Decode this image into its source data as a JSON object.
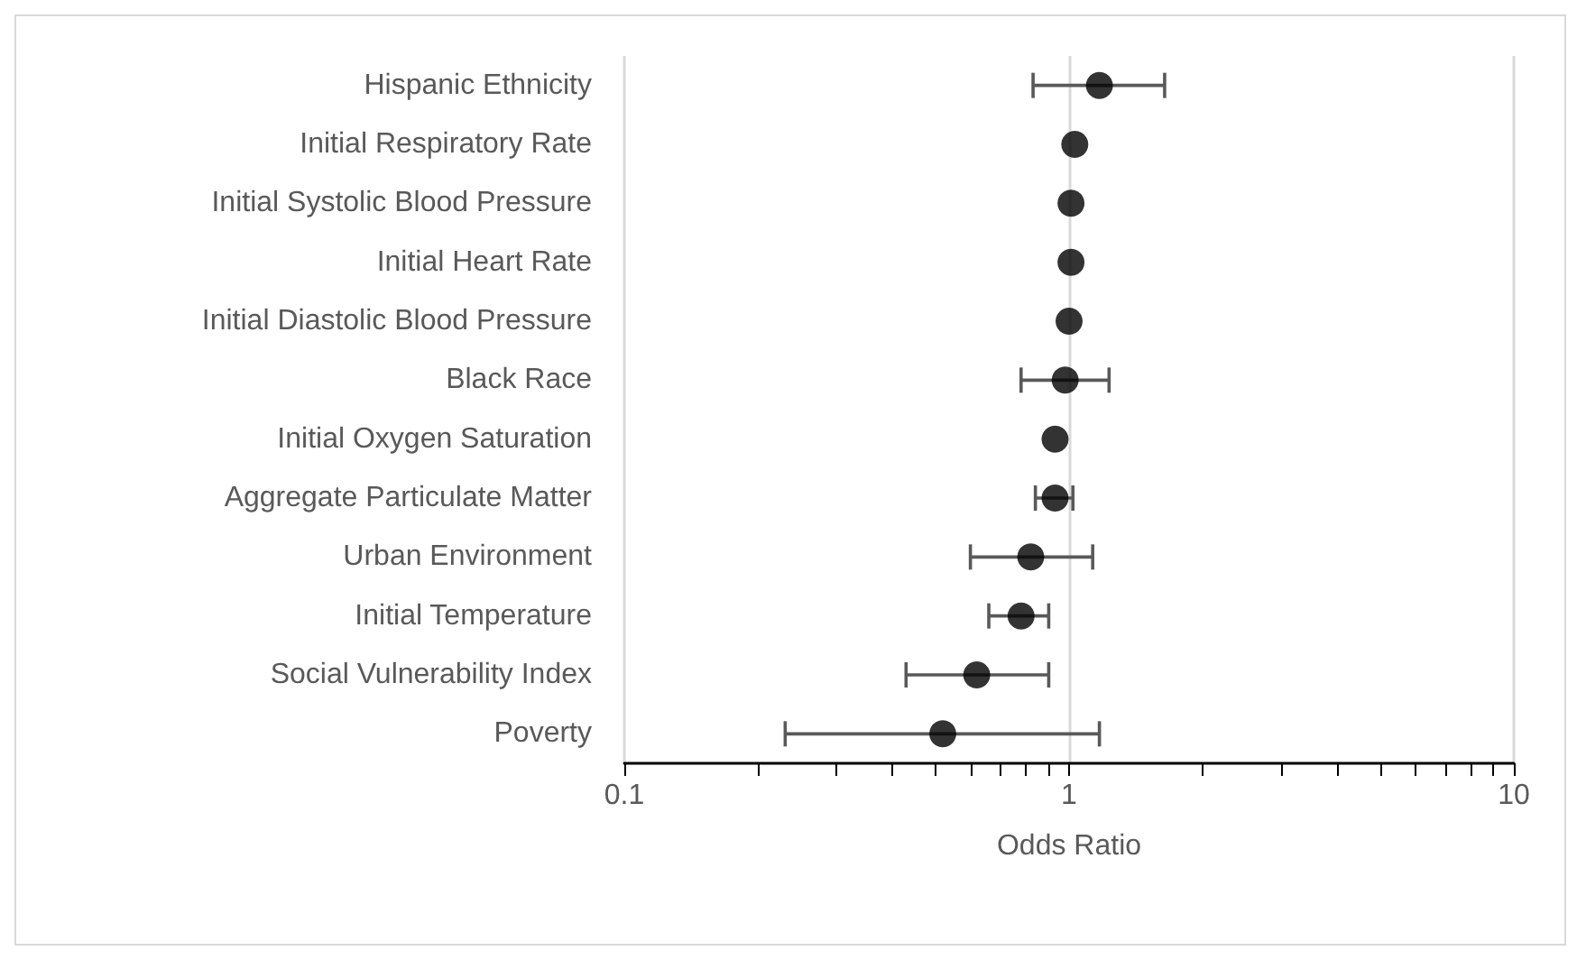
{
  "chart_data": {
    "type": "scatter",
    "xlabel": "Odds Ratio",
    "orientation": "horizontal",
    "categories": [
      "Hispanic Ethnicity",
      "Initial Respiratory Rate",
      "Initial Systolic Blood Pressure",
      "Initial Heart Rate",
      "Initial Diastolic Blood Pressure",
      "Black Race",
      "Initial Oxygen Saturation",
      "Aggregate Particulate Matter",
      "Urban Environment",
      "Initial Temperature",
      "Social Vulnerability Index",
      "Poverty"
    ],
    "series": [
      {
        "color": "#000000",
        "values": [
          1.17,
          1.03,
          1.01,
          1.01,
          1.0,
          0.98,
          0.93,
          0.93,
          0.82,
          0.78,
          0.62,
          0.52
        ],
        "errors": [
          [
            0.83,
            1.64
          ],
          null,
          null,
          null,
          null,
          [
            0.78,
            1.23
          ],
          null,
          [
            0.84,
            1.02
          ],
          [
            0.6,
            1.13
          ],
          [
            0.66,
            0.9
          ],
          [
            0.43,
            0.9
          ],
          [
            0.23,
            1.17
          ]
        ]
      }
    ],
    "log": "x",
    "xlim": [
      0.1,
      10
    ],
    "xticks": [
      0.1,
      {
        "value": 0.2,
        "label": null
      },
      {
        "value": 0.3,
        "label": null
      },
      {
        "value": 0.4,
        "label": null
      },
      {
        "value": 0.5,
        "label": null
      },
      {
        "value": 0.6,
        "label": null
      },
      {
        "value": 0.7,
        "label": null
      },
      {
        "value": 0.8,
        "label": null
      },
      {
        "value": 0.9,
        "label": null
      },
      1,
      {
        "value": 2,
        "label": null
      },
      {
        "value": 3,
        "label": null
      },
      {
        "value": 4,
        "label": null
      },
      {
        "value": 5,
        "label": null
      },
      {
        "value": 6,
        "label": null
      },
      {
        "value": 7,
        "label": null
      },
      {
        "value": 8,
        "label": null
      },
      {
        "value": 9,
        "label": null
      },
      10
    ],
    "grid": "x",
    "marker": "circle"
  }
}
